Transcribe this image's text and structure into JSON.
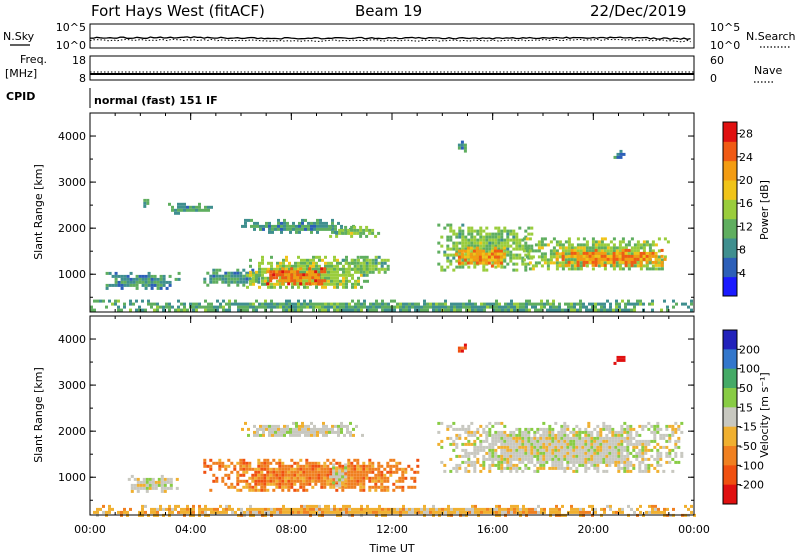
{
  "header": {
    "station": "Fort Hays West (fitACF)",
    "beam": "Beam 19",
    "date": "22/Dec/2019"
  },
  "noise_panel": {
    "left_label": "N.Sky",
    "left_ticks": [
      "10^5",
      "10^0"
    ],
    "right_ticks": [
      "10^5",
      "10^0"
    ],
    "right_label": "N.Search",
    "sky_series": [
      {
        "t": 0,
        "v": 2.1
      },
      {
        "t": 4,
        "v": 2.2
      },
      {
        "t": 8,
        "v": 2.0
      },
      {
        "t": 12,
        "v": 2.1
      },
      {
        "t": 16,
        "v": 2.0
      },
      {
        "t": 20,
        "v": 2.2
      },
      {
        "t": 24,
        "v": 1.9
      }
    ],
    "search_series": [
      {
        "t": 0,
        "v": 1.6
      },
      {
        "t": 4,
        "v": 1.7
      },
      {
        "t": 8,
        "v": 1.5
      },
      {
        "t": 12,
        "v": 1.6
      },
      {
        "t": 16,
        "v": 1.5
      },
      {
        "t": 20,
        "v": 1.8
      },
      {
        "t": 24,
        "v": 1.4
      }
    ]
  },
  "freq_panel": {
    "left_label_top": "Freq.",
    "left_label_bottom": "[MHz]",
    "left_ticks": [
      "18",
      "8"
    ],
    "right_ticks": [
      "60",
      "0"
    ],
    "right_label": "Nave",
    "freq_mhz": 10.5,
    "nave": 20
  },
  "cpid": {
    "label": "CPID",
    "mode": "normal (fast) 151 IF"
  },
  "chart_data": [
    {
      "type": "heatmap",
      "name": "power",
      "ylabel": "Slant Range [km]",
      "xlabel": "",
      "x_ticks": [
        "00:00",
        "04:00",
        "08:00",
        "12:00",
        "16:00",
        "20:00",
        "00:00"
      ],
      "y_ticks": [
        "1000",
        "2000",
        "3000",
        "4000"
      ],
      "xlim": [
        0,
        24
      ],
      "ylim": [
        180,
        4500
      ],
      "colorbar": {
        "label": "Power [dB]",
        "ticks": [
          "4",
          "8",
          "12",
          "16",
          "20",
          "24",
          "28"
        ],
        "range": [
          0,
          30
        ],
        "colors": [
          "#1a1aff",
          "#2c5fb8",
          "#3f8f8f",
          "#5fae5f",
          "#9acd3c",
          "#f0c419",
          "#f39c12",
          "#f05a14",
          "#e01010"
        ]
      },
      "regions": [
        {
          "t0": 0.5,
          "t1": 3.5,
          "r0": 700,
          "r1": 1050,
          "level": 8
        },
        {
          "t0": 4.5,
          "t1": 6.8,
          "r0": 780,
          "r1": 1120,
          "level": 9
        },
        {
          "t0": 6.2,
          "t1": 11.0,
          "r0": 700,
          "r1": 1400,
          "level": 14
        },
        {
          "t0": 7.0,
          "t1": 9.5,
          "r0": 800,
          "r1": 1150,
          "level": 25
        },
        {
          "t0": 10.0,
          "t1": 11.8,
          "r0": 1000,
          "r1": 1400,
          "level": 12
        },
        {
          "t0": 6.0,
          "t1": 10.5,
          "r0": 1900,
          "r1": 2200,
          "level": 9
        },
        {
          "t0": 9.5,
          "t1": 11.5,
          "r0": 1850,
          "r1": 2050,
          "level": 13
        },
        {
          "t0": 2.0,
          "t1": 2.3,
          "r0": 2450,
          "r1": 2700,
          "level": 9
        },
        {
          "t0": 3.1,
          "t1": 4.8,
          "r0": 2350,
          "r1": 2550,
          "level": 9
        },
        {
          "t0": 13.8,
          "t1": 17.5,
          "r0": 1100,
          "r1": 2100,
          "level": 13
        },
        {
          "t0": 14.5,
          "t1": 16.5,
          "r0": 1200,
          "r1": 1600,
          "level": 22
        },
        {
          "t0": 17.2,
          "t1": 23.0,
          "r0": 1100,
          "r1": 1800,
          "level": 14
        },
        {
          "t0": 18.5,
          "t1": 22.8,
          "r0": 1200,
          "r1": 1550,
          "level": 23
        },
        {
          "t0": 14.5,
          "t1": 14.9,
          "r0": 3700,
          "r1": 3900,
          "level": 7
        },
        {
          "t0": 20.8,
          "t1": 21.2,
          "r0": 3500,
          "r1": 3700,
          "level": 8
        },
        {
          "t0": 0.0,
          "t1": 24.0,
          "r0": 200,
          "r1": 450,
          "level": 10
        }
      ]
    },
    {
      "type": "heatmap",
      "name": "velocity",
      "ylabel": "Slant Range [km]",
      "xlabel": "Time UT",
      "x_ticks": [
        "00:00",
        "04:00",
        "08:00",
        "12:00",
        "16:00",
        "20:00",
        "00:00"
      ],
      "y_ticks": [
        "1000",
        "2000",
        "3000",
        "4000"
      ],
      "xlim": [
        0,
        24
      ],
      "ylim": [
        180,
        4500
      ],
      "colorbar": {
        "label": "Velocity [m s⁻¹]",
        "ticks": [
          "200",
          "100",
          "50",
          "15",
          "-15",
          "-50",
          "-100",
          "-200"
        ],
        "colors": [
          "#2222bb",
          "#3377cc",
          "#44aa66",
          "#88cc44",
          "#c8c8c0",
          "#f0b030",
          "#f08020",
          "#f05010",
          "#e01010"
        ]
      },
      "regions": [
        {
          "t0": 4.5,
          "t1": 13.0,
          "r0": 700,
          "r1": 1400,
          "level": 6
        },
        {
          "t0": 9.5,
          "t1": 10.2,
          "r0": 800,
          "r1": 1300,
          "level": 4
        },
        {
          "t0": 6.0,
          "t1": 11.0,
          "r0": 1900,
          "r1": 2200,
          "level": 4
        },
        {
          "t0": 13.8,
          "t1": 23.5,
          "r0": 1100,
          "r1": 2200,
          "level": 4
        },
        {
          "t0": 1.5,
          "t1": 3.5,
          "r0": 700,
          "r1": 1050,
          "level": 4
        },
        {
          "t0": 14.5,
          "t1": 14.9,
          "r0": 3700,
          "r1": 3900,
          "level": 7
        },
        {
          "t0": 20.8,
          "t1": 21.2,
          "r0": 3500,
          "r1": 3700,
          "level": 8
        },
        {
          "t0": 0.0,
          "t1": 24.0,
          "r0": 200,
          "r1": 400,
          "level": 5
        }
      ]
    }
  ]
}
